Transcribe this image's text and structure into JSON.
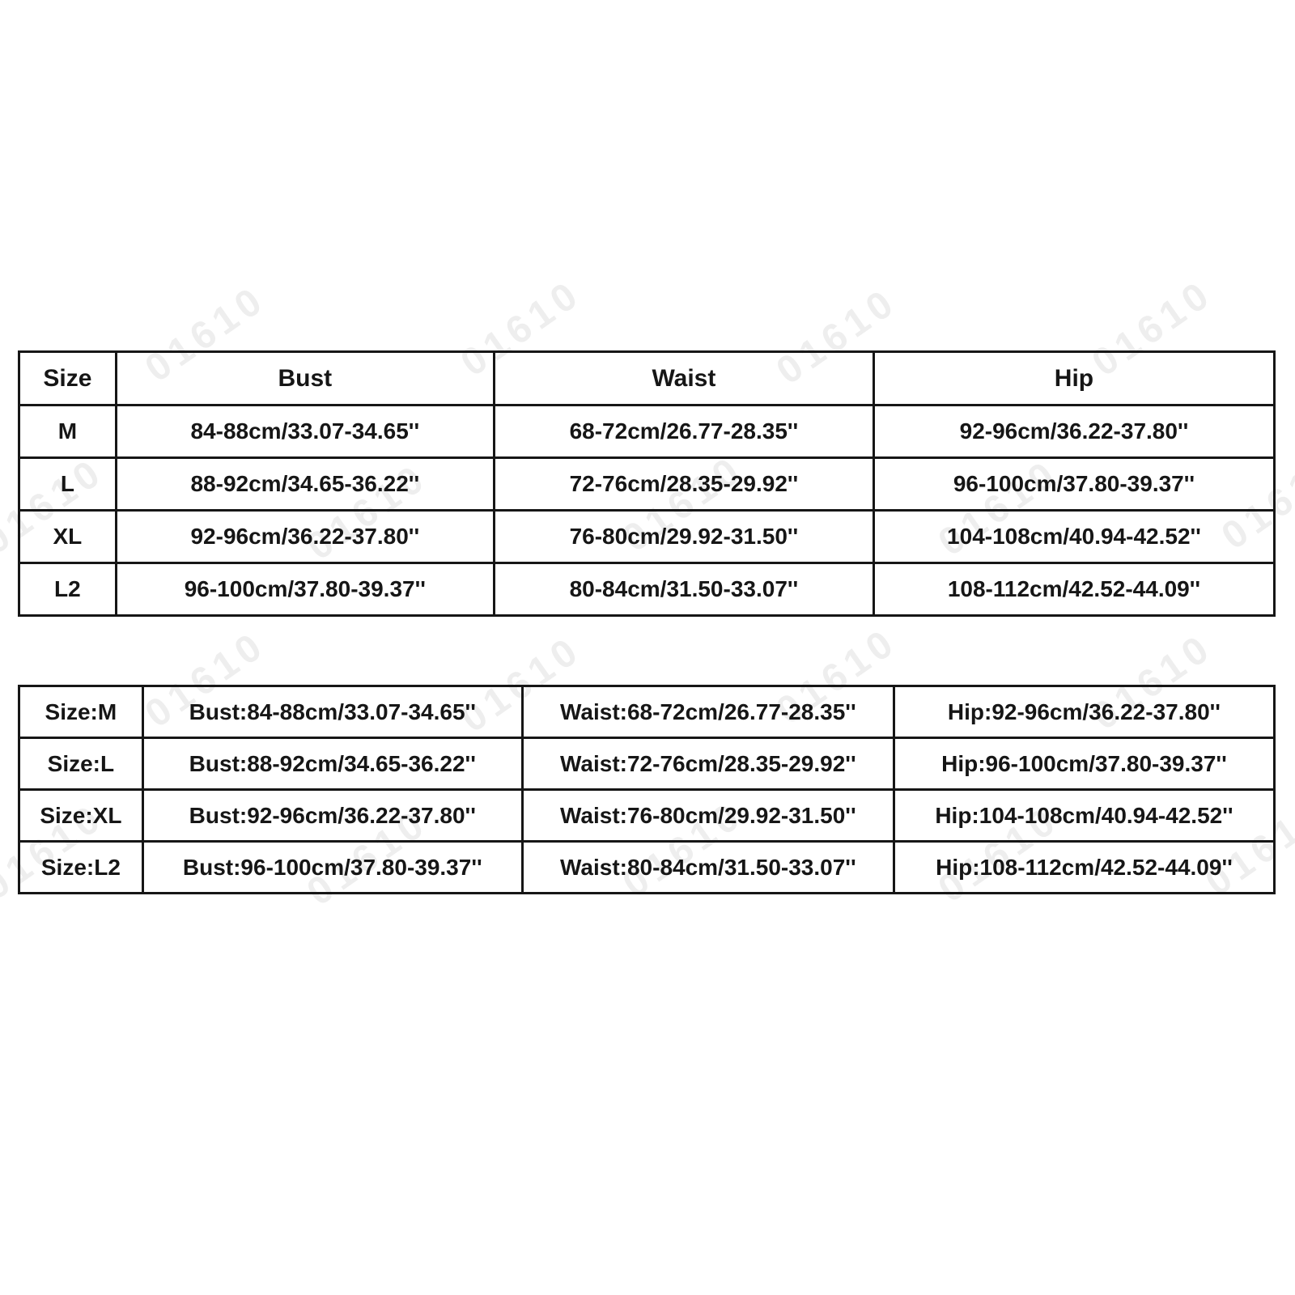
{
  "colors": {
    "background": "#ffffff",
    "border": "#161616",
    "text": "#161616",
    "watermark": "rgba(0,0,0,0.065)"
  },
  "watermark": {
    "text": "01610"
  },
  "size_chart": {
    "headers": [
      "Size",
      "Bust",
      "Waist",
      "Hip"
    ],
    "rows": [
      {
        "size": "M",
        "bust": "84-88cm/33.07-34.65''",
        "waist": "68-72cm/26.77-28.35''",
        "hip": "92-96cm/36.22-37.80''"
      },
      {
        "size": "L",
        "bust": "88-92cm/34.65-36.22''",
        "waist": "72-76cm/28.35-29.92''",
        "hip": "96-100cm/37.80-39.37''"
      },
      {
        "size": "XL",
        "bust": "92-96cm/36.22-37.80''",
        "waist": "76-80cm/29.92-31.50''",
        "hip": "104-108cm/40.94-42.52''"
      },
      {
        "size": "L2",
        "bust": "96-100cm/37.80-39.37''",
        "waist": "80-84cm/31.50-33.07''",
        "hip": "108-112cm/42.52-44.09''"
      }
    ]
  },
  "labeled_size_chart": {
    "rows": [
      {
        "size": "Size:M",
        "bust": "Bust:84-88cm/33.07-34.65''",
        "waist": "Waist:68-72cm/26.77-28.35''",
        "hip": "Hip:92-96cm/36.22-37.80''"
      },
      {
        "size": "Size:L",
        "bust": "Bust:88-92cm/34.65-36.22''",
        "waist": "Waist:72-76cm/28.35-29.92''",
        "hip": "Hip:96-100cm/37.80-39.37''"
      },
      {
        "size": "Size:XL",
        "bust": "Bust:92-96cm/36.22-37.80''",
        "waist": "Waist:76-80cm/29.92-31.50''",
        "hip": "Hip:104-108cm/40.94-42.52''"
      },
      {
        "size": "Size:L2",
        "bust": "Bust:96-100cm/37.80-39.37''",
        "waist": "Waist:80-84cm/31.50-33.07''",
        "hip": "Hip:108-112cm/42.52-44.09''"
      }
    ]
  }
}
